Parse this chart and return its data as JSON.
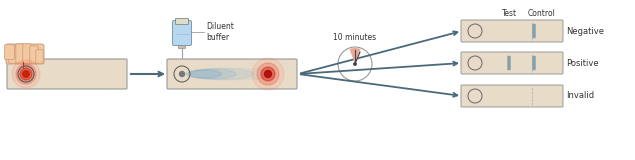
{
  "bg_color": "#ffffff",
  "strip_color": "#e8dcc8",
  "strip_border": "#999999",
  "arrow_color": "#4a6a7a",
  "text_color": "#333333",
  "diluent_label": "Diluent\nbuffer",
  "minutes_label": "10 minutes",
  "test_label": "Test",
  "control_label": "Control",
  "band_color": "#7a9aaa",
  "hand_skin": "#f2c9a0",
  "hand_border": "#c89878",
  "syringe_body": "#b8d8f0",
  "syringe_border": "#7a9ab0",
  "needle_color": "#a0a0a0",
  "clock_wedge": "#e8a898"
}
